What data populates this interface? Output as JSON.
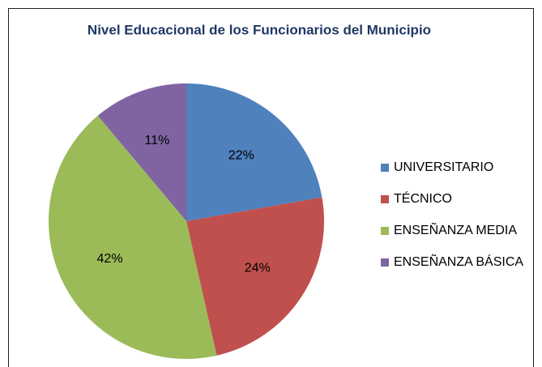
{
  "chart_data": {
    "type": "pie",
    "title": "Nivel Educacional de los Funcionarios del Municipio",
    "categories": [
      "UNIVERSITARIO",
      "TÉCNICO",
      "ENSEÑANZA MEDIA",
      "ENSEÑANZA BÁSICA"
    ],
    "values": [
      22,
      24,
      42,
      11
    ],
    "value_labels": [
      "22%",
      "24%",
      "42%",
      "11%"
    ],
    "colors": [
      "#4f81bd",
      "#c0504d",
      "#9bbb59",
      "#8064a2"
    ],
    "legend": "right"
  }
}
